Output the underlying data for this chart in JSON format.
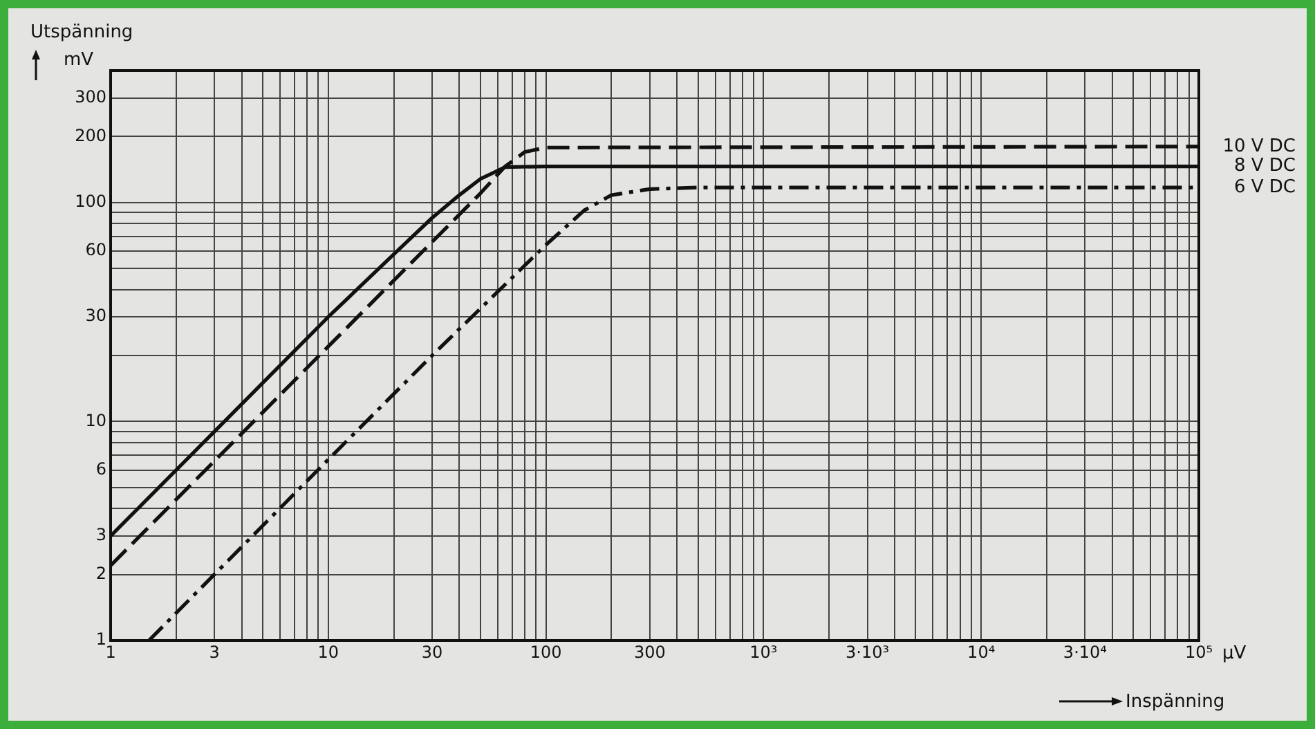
{
  "chart_data": {
    "type": "line",
    "xlabel": "Inspänning",
    "ylabel": "Utspänning",
    "annotations": [
      "mV",
      "µV"
    ],
    "log": "xy",
    "grid": true,
    "legend": false,
    "marker": "none",
    "xlim": [
      1,
      100000
    ],
    "ylim": [
      1,
      400
    ],
    "xticks": [
      1,
      {
        "value": 2,
        "label": null
      },
      3,
      {
        "value": 4,
        "label": null
      },
      {
        "value": 5,
        "label": null
      },
      {
        "value": 6,
        "label": null
      },
      {
        "value": 7,
        "label": null
      },
      {
        "value": 8,
        "label": null
      },
      {
        "value": 9,
        "label": null
      },
      10,
      {
        "value": 20,
        "label": null
      },
      30,
      {
        "value": 40,
        "label": null
      },
      {
        "value": 50,
        "label": null
      },
      {
        "value": 60,
        "label": null
      },
      {
        "value": 70,
        "label": null
      },
      {
        "value": 80,
        "label": null
      },
      {
        "value": 90,
        "label": null
      },
      100,
      {
        "value": 200,
        "label": null
      },
      300,
      {
        "value": 400,
        "label": null
      },
      {
        "value": 500,
        "label": null
      },
      {
        "value": 600,
        "label": null
      },
      {
        "value": 700,
        "label": null
      },
      {
        "value": 800,
        "label": null
      },
      {
        "value": 900,
        "label": null
      },
      {
        "value": 1000,
        "label": "10³"
      },
      {
        "value": 2000,
        "label": null
      },
      {
        "value": 3000,
        "label": "3·10³"
      },
      {
        "value": 4000,
        "label": null
      },
      {
        "value": 5000,
        "label": null
      },
      {
        "value": 6000,
        "label": null
      },
      {
        "value": 7000,
        "label": null
      },
      {
        "value": 8000,
        "label": null
      },
      {
        "value": 9000,
        "label": null
      },
      {
        "value": 10000,
        "label": "10⁴"
      },
      {
        "value": 20000,
        "label": null
      },
      {
        "value": 30000,
        "label": "3·10⁴"
      },
      {
        "value": 40000,
        "label": null
      },
      {
        "value": 50000,
        "label": null
      },
      {
        "value": 60000,
        "label": null
      },
      {
        "value": 70000,
        "label": null
      },
      {
        "value": 80000,
        "label": null
      },
      {
        "value": 90000,
        "label": null
      },
      {
        "value": 100000,
        "label": "10⁵"
      }
    ],
    "yticks": [
      1,
      2,
      3,
      {
        "value": 4,
        "label": null
      },
      {
        "value": 5,
        "label": null
      },
      6,
      {
        "value": 7,
        "label": null
      },
      {
        "value": 8,
        "label": null
      },
      {
        "value": 9,
        "label": null
      },
      10,
      {
        "value": 20,
        "label": null
      },
      30,
      {
        "value": 40,
        "label": null
      },
      {
        "value": 50,
        "label": null
      },
      60,
      {
        "value": 70,
        "label": null
      },
      {
        "value": 80,
        "label": null
      },
      {
        "value": 90,
        "label": null
      },
      100,
      200,
      300
    ],
    "series": [
      {
        "name": "10 V DC",
        "color": "#111111",
        "line_style": "dashed",
        "x": [
          1,
          10,
          30,
          50,
          65,
          80,
          100,
          100000
        ],
        "values": [
          2.2,
          22,
          66,
          110,
          146,
          170,
          178,
          180
        ]
      },
      {
        "name": "8 V DC",
        "color": "#111111",
        "line_style": "solid",
        "x": [
          1,
          3,
          10,
          20,
          30,
          40,
          50,
          65,
          100,
          100000
        ],
        "values": [
          3,
          9,
          30,
          58,
          85,
          108,
          128,
          145,
          146,
          146
        ]
      },
      {
        "name": "6 V DC",
        "color": "#111111",
        "line_style": "dashdot",
        "x": [
          1.5,
          10,
          30,
          100,
          150,
          200,
          300,
          500,
          100000
        ],
        "values": [
          1,
          6.7,
          20,
          64,
          92,
          108,
          115,
          117,
          117
        ]
      }
    ]
  }
}
